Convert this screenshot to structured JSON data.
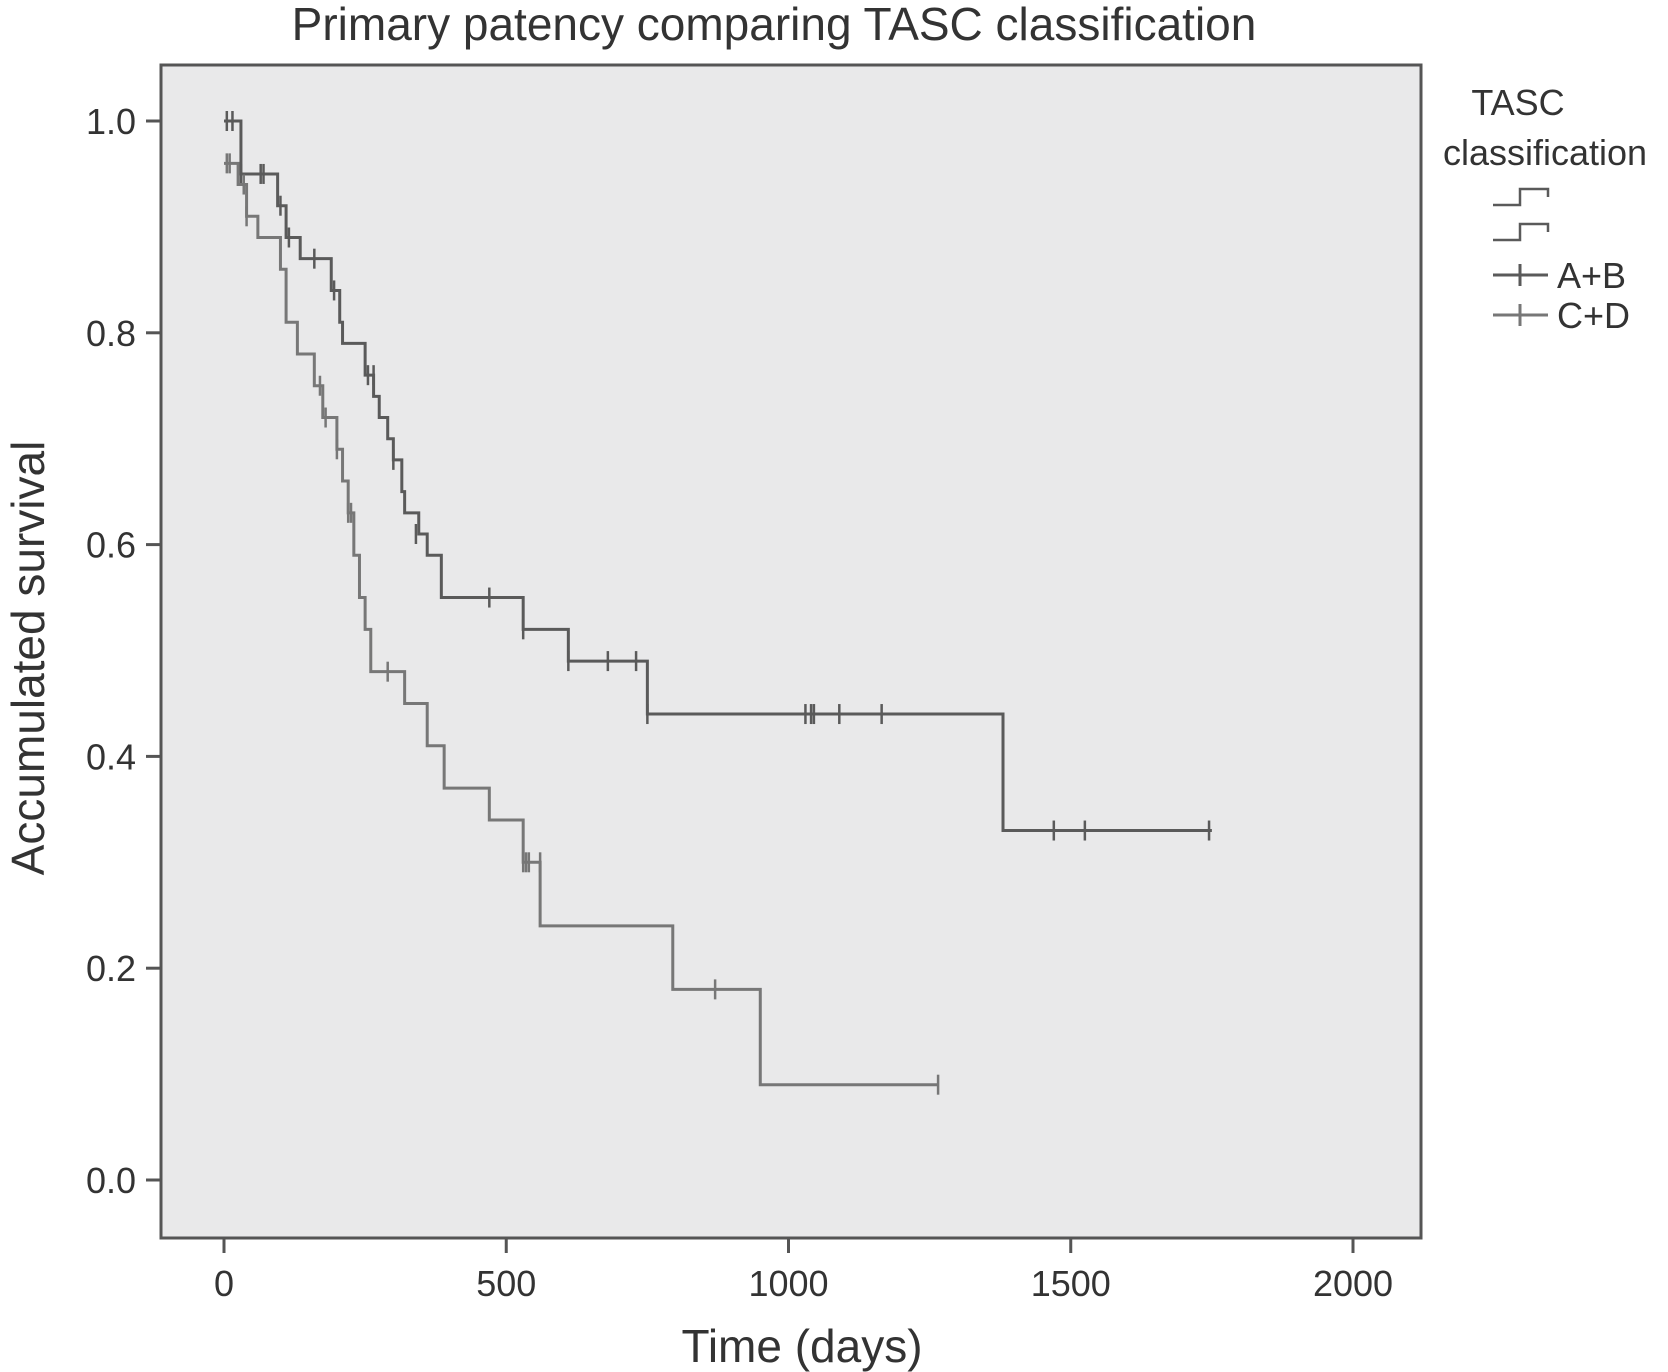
{
  "chart_data": {
    "type": "line",
    "title": "Primary patency comparing TASC classification",
    "xlabel": "Time (days)",
    "ylabel": "Accumulated survival",
    "xlim": [
      0,
      2000
    ],
    "ylim": [
      0,
      1
    ],
    "x_ticks": [
      "0",
      "500",
      "1000",
      "1500",
      "2000"
    ],
    "y_ticks": [
      "0.0",
      "0.2",
      "0.4",
      "0.6",
      "0.8",
      "1.0"
    ],
    "grid": false,
    "legend": {
      "title": [
        "TASC",
        "classification"
      ],
      "placement": "right",
      "entries": [
        "A+B",
        "C+D"
      ]
    },
    "series": [
      {
        "name": "A+B",
        "color": "#5a5a5a",
        "steps": [
          [
            0,
            1.0
          ],
          [
            30,
            0.95
          ],
          [
            95,
            0.92
          ],
          [
            110,
            0.89
          ],
          [
            135,
            0.87
          ],
          [
            190,
            0.84
          ],
          [
            205,
            0.81
          ],
          [
            210,
            0.79
          ],
          [
            250,
            0.76
          ],
          [
            265,
            0.74
          ],
          [
            275,
            0.72
          ],
          [
            290,
            0.7
          ],
          [
            300,
            0.68
          ],
          [
            315,
            0.65
          ],
          [
            320,
            0.63
          ],
          [
            345,
            0.61
          ],
          [
            360,
            0.59
          ],
          [
            385,
            0.55
          ],
          [
            530,
            0.52
          ],
          [
            610,
            0.49
          ],
          [
            750,
            0.44
          ],
          [
            1380,
            0.33
          ],
          [
            1750,
            0.33
          ]
        ],
        "censored": [
          [
            5,
            1.0
          ],
          [
            15,
            1.0
          ],
          [
            30,
            0.95
          ],
          [
            65,
            0.95
          ],
          [
            70,
            0.95
          ],
          [
            100,
            0.92
          ],
          [
            115,
            0.89
          ],
          [
            160,
            0.87
          ],
          [
            195,
            0.84
          ],
          [
            255,
            0.76
          ],
          [
            265,
            0.76
          ],
          [
            300,
            0.68
          ],
          [
            340,
            0.61
          ],
          [
            470,
            0.55
          ],
          [
            530,
            0.52
          ],
          [
            610,
            0.49
          ],
          [
            680,
            0.49
          ],
          [
            730,
            0.49
          ],
          [
            750,
            0.44
          ],
          [
            1030,
            0.44
          ],
          [
            1040,
            0.44
          ],
          [
            1045,
            0.44
          ],
          [
            1090,
            0.44
          ],
          [
            1165,
            0.44
          ],
          [
            1470,
            0.33
          ],
          [
            1525,
            0.33
          ],
          [
            1745,
            0.33
          ]
        ]
      },
      {
        "name": "C+D",
        "color": "#777777",
        "steps": [
          [
            0,
            0.96
          ],
          [
            25,
            0.94
          ],
          [
            40,
            0.91
          ],
          [
            60,
            0.89
          ],
          [
            100,
            0.86
          ],
          [
            110,
            0.81
          ],
          [
            130,
            0.78
          ],
          [
            160,
            0.75
          ],
          [
            175,
            0.72
          ],
          [
            200,
            0.69
          ],
          [
            210,
            0.66
          ],
          [
            220,
            0.63
          ],
          [
            230,
            0.59
          ],
          [
            240,
            0.55
          ],
          [
            250,
            0.52
          ],
          [
            260,
            0.48
          ],
          [
            320,
            0.45
          ],
          [
            360,
            0.41
          ],
          [
            390,
            0.37
          ],
          [
            470,
            0.34
          ],
          [
            530,
            0.3
          ],
          [
            560,
            0.24
          ],
          [
            795,
            0.18
          ],
          [
            950,
            0.09
          ],
          [
            1265,
            0.09
          ]
        ],
        "censored": [
          [
            5,
            0.96
          ],
          [
            10,
            0.96
          ],
          [
            35,
            0.94
          ],
          [
            40,
            0.91
          ],
          [
            170,
            0.75
          ],
          [
            180,
            0.72
          ],
          [
            200,
            0.69
          ],
          [
            220,
            0.63
          ],
          [
            225,
            0.63
          ],
          [
            290,
            0.48
          ],
          [
            530,
            0.3
          ],
          [
            535,
            0.3
          ],
          [
            540,
            0.3
          ],
          [
            560,
            0.3
          ],
          [
            870,
            0.18
          ],
          [
            1265,
            0.09
          ]
        ]
      }
    ]
  }
}
